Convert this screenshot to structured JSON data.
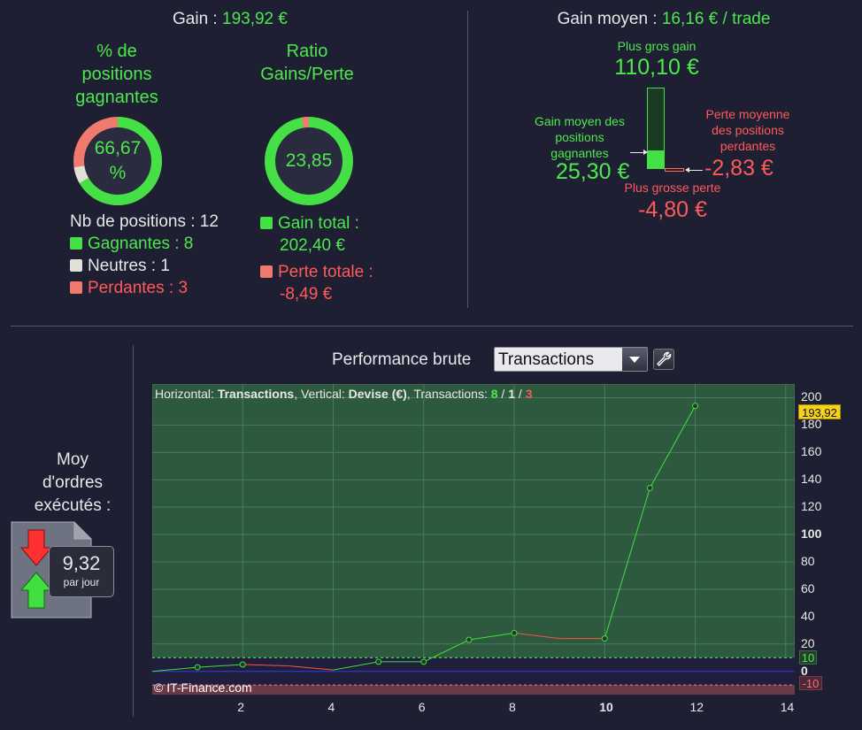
{
  "summary": {
    "gain_label": "Gain : ",
    "gain_value": "193,92 €",
    "win_pct_title_1": "% de",
    "win_pct_title_2": "positions",
    "win_pct_title_3": "gagnantes",
    "win_pct_value_1": "66,67",
    "win_pct_value_2": "%",
    "win_pct_fraction": 0.6667,
    "ratio_title_1": "Ratio",
    "ratio_title_2": "Gains/Perte",
    "ratio_value": "23,85",
    "nb_positions": "Nb de positions : 12",
    "gagnantes": "Gagnantes : 8",
    "neutres": "Neutres : 1",
    "perdantes": "Perdantes : 3",
    "gain_total_label": "Gain total :",
    "gain_total_value": "202,40 €",
    "perte_totale_label": "Perte totale :",
    "perte_totale_value": "-8,49 €"
  },
  "gain_moyen": {
    "label": "Gain moyen : ",
    "value": "16,16 € / trade",
    "plus_gros_gain_label": "Plus gros gain",
    "plus_gros_gain_value": "110,10 €",
    "gain_moyen_pos_1": "Gain moyen des",
    "gain_moyen_pos_2": "positions",
    "gain_moyen_pos_3": "gagnantes",
    "gain_moyen_pos_value": "25,30 €",
    "perte_moyenne_1": "Perte moyenne",
    "perte_moyenne_2": "des positions",
    "perte_moyenne_3": "perdantes",
    "perte_moyenne_value": "-2,83 €",
    "plus_grosse_perte_label": "Plus grosse perte",
    "plus_grosse_perte_value": "-4,80 €"
  },
  "orders": {
    "title_1": "Moy",
    "title_2": "d'ordres",
    "title_3": "exécutés :",
    "value": "9,32",
    "unit": "par jour"
  },
  "performance": {
    "title": "Performance brute",
    "select_value": "Transactions",
    "info_horizontal": "Horizontal: ",
    "info_h_val": "Transactions",
    "info_vertical": ", Vertical: ",
    "info_v_val": "Devise (€)",
    "info_trans": ", Transactions: ",
    "info_win": "8",
    "info_sep1": " / ",
    "info_neutral": "1",
    "info_sep2": " / ",
    "info_loss": "3",
    "watermark": "© IT-Finance.com",
    "last_value_label": "193,92",
    "upper_threshold_label": "10",
    "lower_threshold_label": "-10",
    "x_ticks": [
      "2",
      "4",
      "6",
      "8",
      "10",
      "12",
      "14"
    ],
    "y_ticks": [
      "200",
      "180",
      "160",
      "140",
      "120",
      "100",
      "80",
      "60",
      "40",
      "20",
      "0"
    ]
  },
  "chart_data": {
    "type": "line",
    "x": [
      0,
      1,
      2,
      3,
      4,
      5,
      6,
      7,
      8,
      9,
      10,
      11,
      12
    ],
    "y": [
      0,
      3,
      5,
      4,
      1,
      7,
      7,
      23,
      28,
      24,
      24,
      134,
      194
    ],
    "segment_colors": [
      "green",
      "green",
      "red",
      "red",
      "green",
      "green",
      "green",
      "green",
      "red",
      "neutral",
      "green",
      "green"
    ],
    "xlim": [
      0,
      14.2
    ],
    "ylim": [
      -17,
      210
    ],
    "thresholds": [
      10,
      -10
    ],
    "grid": true,
    "colors": {
      "up": "#3fe03f",
      "down": "#ff4d4d",
      "background": "#2d5a3f",
      "lower_zone": "#6a3a48",
      "zero_line": "#3b3bd8"
    }
  }
}
